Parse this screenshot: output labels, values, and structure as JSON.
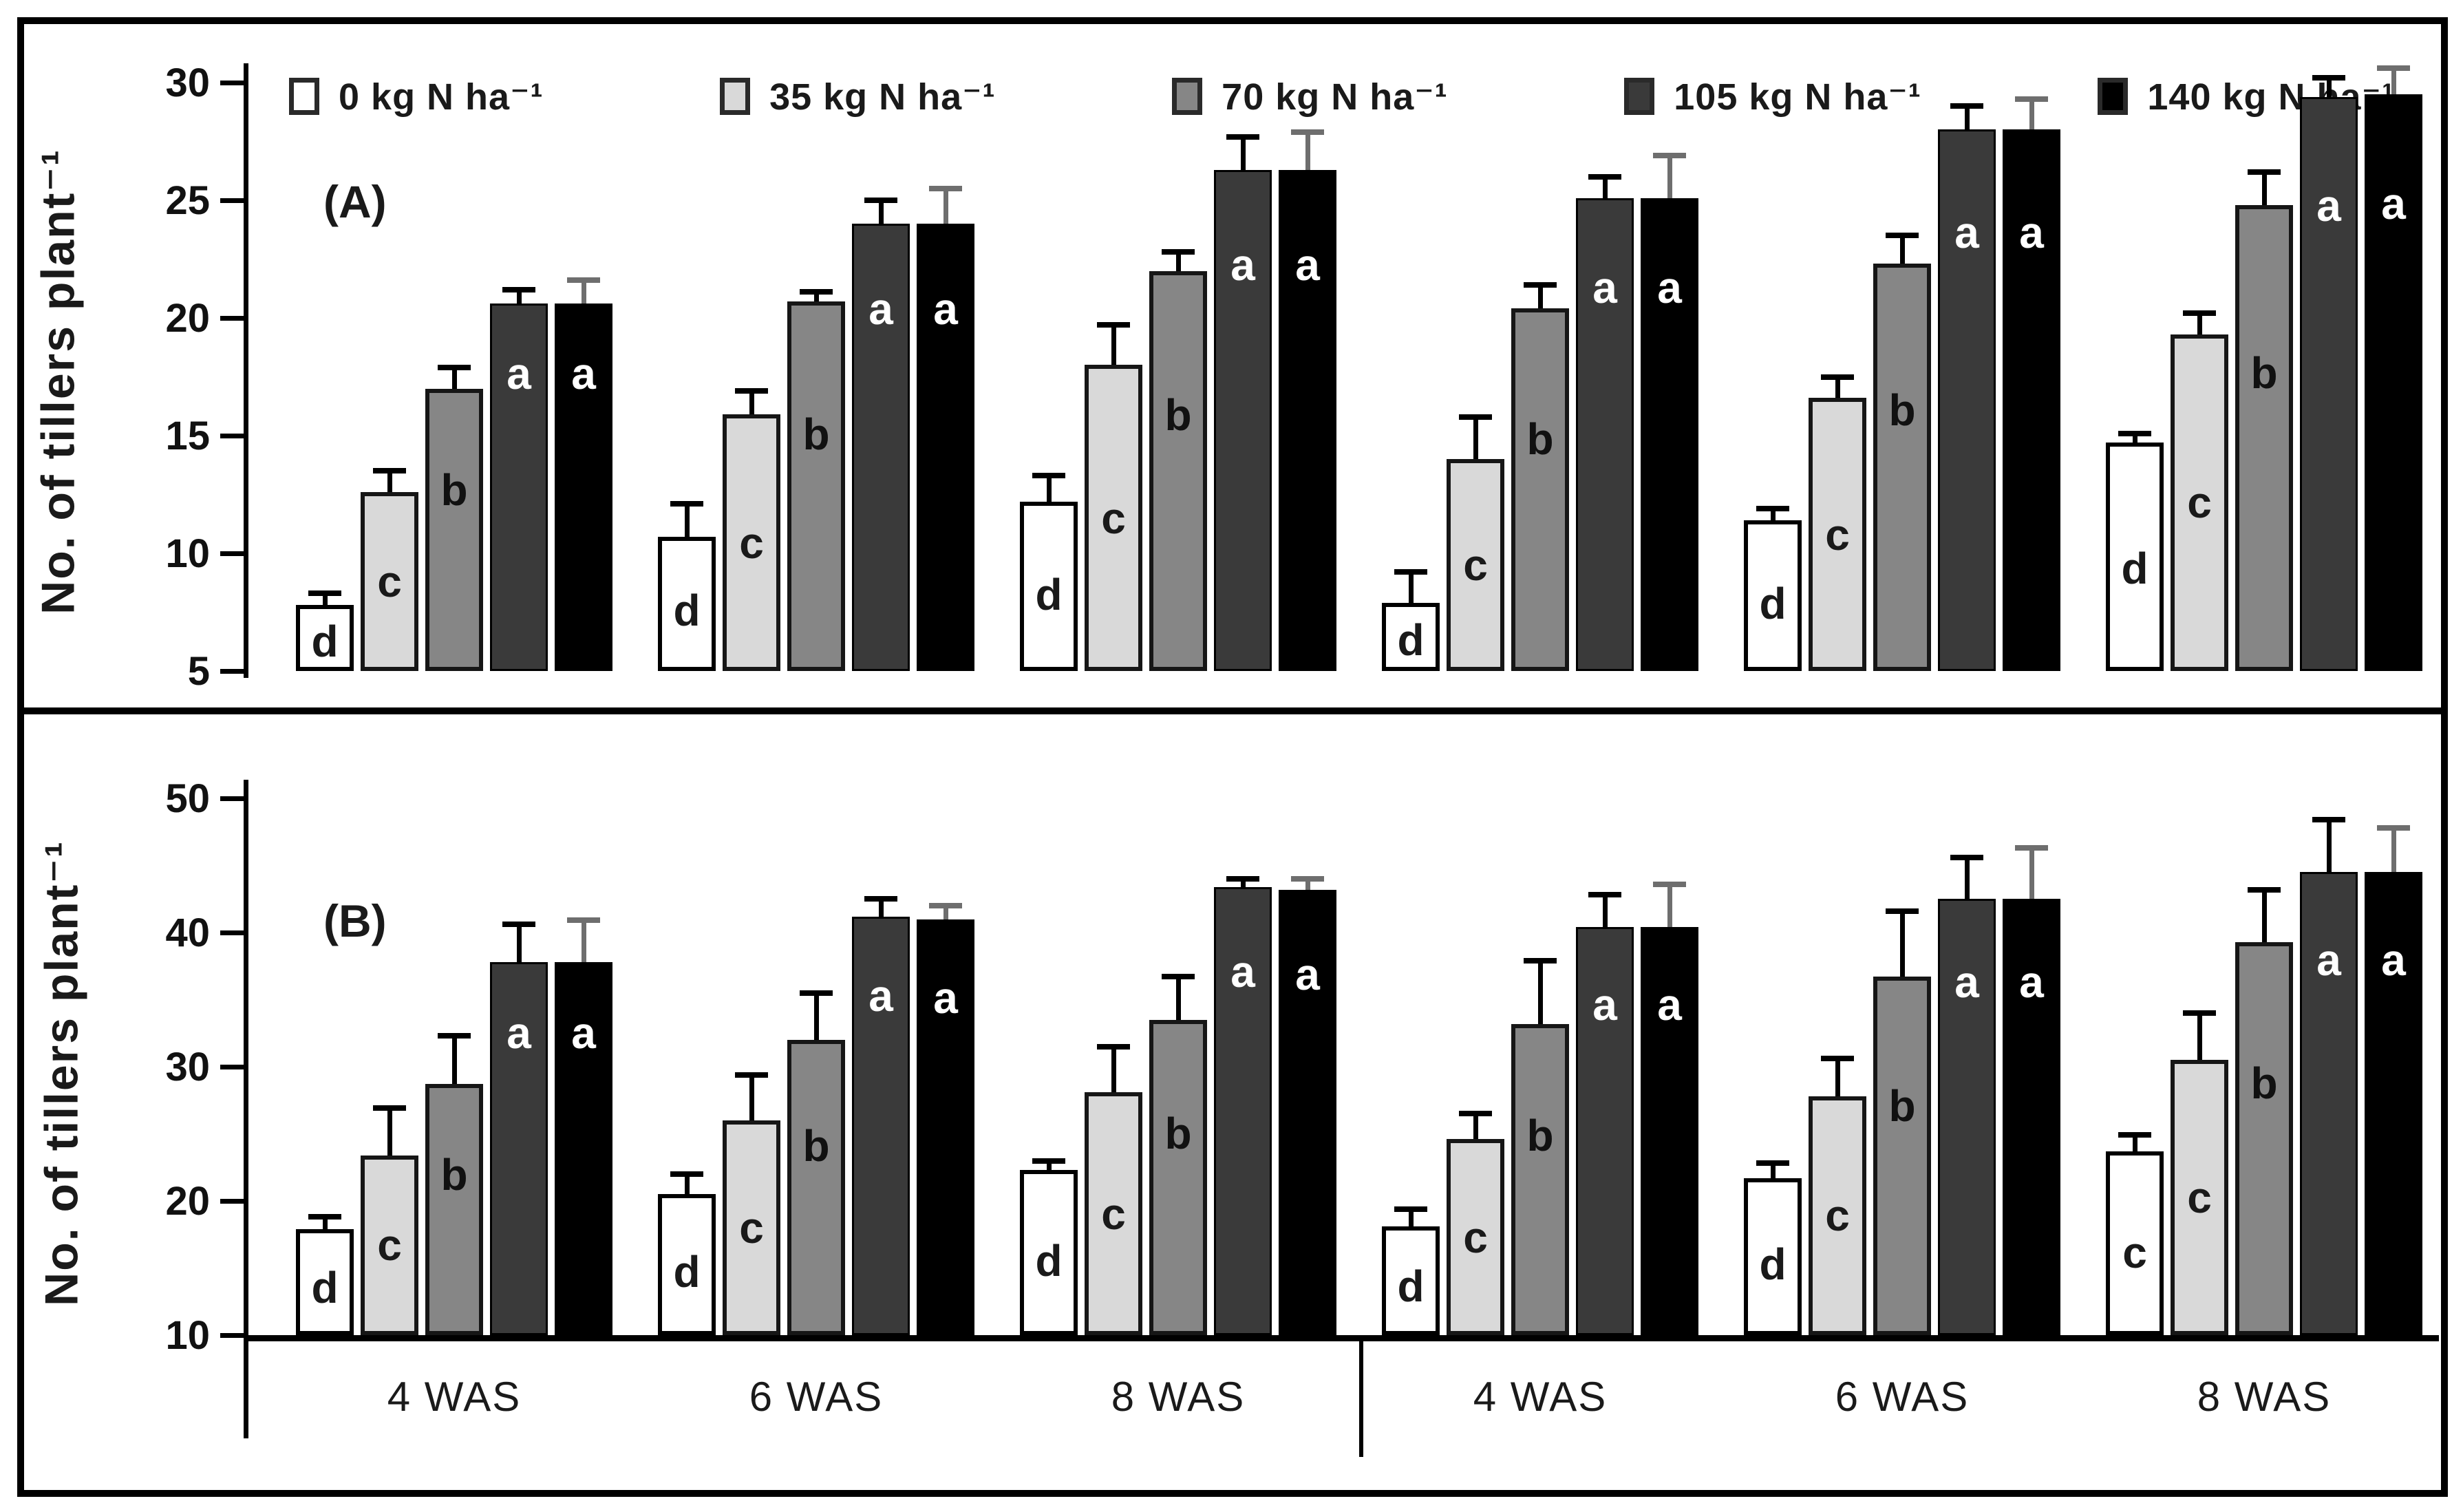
{
  "figure": {
    "border_color": "#000000",
    "background": "#ffffff"
  },
  "legend": {
    "items": [
      {
        "label": "0 kg N ha⁻¹",
        "color": "#ffffff"
      },
      {
        "label": "35 kg N ha⁻¹",
        "color": "#d9d9d9"
      },
      {
        "label": "70 kg N ha⁻¹",
        "color": "#868686"
      },
      {
        "label": "105 kg N ha⁻¹",
        "color": "#3a3a3a"
      },
      {
        "label": "140 kg N ha⁻¹",
        "color": "#000000"
      }
    ]
  },
  "chart_data": [
    {
      "type": "bar",
      "panel": "(A)",
      "ylabel": "No. of tillers plant⁻¹",
      "ylim": [
        5,
        30
      ],
      "yticks": [
        5,
        10,
        15,
        20,
        25,
        30
      ],
      "grid": false,
      "legend_position": "top",
      "categories": [
        "4 WAS",
        "6 WAS",
        "8 WAS",
        "4 WAS",
        "6 WAS",
        "8 WAS"
      ],
      "series": [
        {
          "name": "0 kg N ha⁻¹",
          "color": "#ffffff",
          "values": [
            7.8,
            10.7,
            12.2,
            7.9,
            11.4,
            14.7
          ],
          "errors": [
            0.5,
            1.4,
            1.1,
            1.3,
            0.5,
            0.4
          ],
          "letters": [
            "d",
            "d",
            "d",
            "d",
            "d",
            "d"
          ]
        },
        {
          "name": "35 kg N ha⁻¹",
          "color": "#d9d9d9",
          "values": [
            12.6,
            15.9,
            18.0,
            14.0,
            16.6,
            19.3
          ],
          "errors": [
            0.9,
            1.0,
            1.7,
            1.8,
            0.9,
            0.9
          ],
          "letters": [
            "c",
            "c",
            "c",
            "c",
            "c",
            "c"
          ]
        },
        {
          "name": "70 kg N ha⁻¹",
          "color": "#868686",
          "values": [
            17.0,
            20.7,
            22.0,
            20.4,
            22.3,
            24.8
          ],
          "errors": [
            0.9,
            0.4,
            0.8,
            1.0,
            1.2,
            1.4
          ],
          "letters": [
            "b",
            "b",
            "b",
            "b",
            "b",
            "b"
          ]
        },
        {
          "name": "105 kg N ha⁻¹",
          "color": "#3a3a3a",
          "values": [
            20.6,
            24.0,
            26.3,
            25.1,
            28.0,
            29.4
          ],
          "errors": [
            0.6,
            1.0,
            1.4,
            0.9,
            1.0,
            0.8
          ],
          "letters": [
            "a",
            "a",
            "a",
            "a",
            "a",
            "a"
          ]
        },
        {
          "name": "140 kg N ha⁻¹",
          "color": "#000000",
          "values": [
            20.6,
            24.0,
            26.3,
            25.1,
            28.0,
            29.5
          ],
          "errors": [
            1.0,
            1.5,
            1.6,
            1.8,
            1.3,
            1.1
          ],
          "letters": [
            "a",
            "a",
            "a",
            "a",
            "a",
            "a"
          ]
        }
      ]
    },
    {
      "type": "bar",
      "panel": "(B)",
      "ylabel": "No. of tillers plant⁻¹",
      "ylim": [
        10,
        50
      ],
      "yticks": [
        10,
        20,
        30,
        40,
        50
      ],
      "grid": false,
      "xlabels": [
        "4 WAS",
        "6 WAS",
        "8 WAS",
        "4 WAS",
        "6 WAS",
        "8 WAS"
      ],
      "categories": [
        "4 WAS",
        "6 WAS",
        "8 WAS",
        "4 WAS",
        "6 WAS",
        "8 WAS"
      ],
      "series": [
        {
          "name": "0 kg N ha⁻¹",
          "color": "#ffffff",
          "values": [
            17.9,
            20.5,
            22.3,
            18.1,
            21.7,
            23.7
          ],
          "errors": [
            0.9,
            1.5,
            0.7,
            1.3,
            1.1,
            1.2
          ],
          "letters": [
            "d",
            "d",
            "d",
            "d",
            "d",
            "c"
          ]
        },
        {
          "name": "35 kg N ha⁻¹",
          "color": "#d9d9d9",
          "values": [
            23.4,
            26.0,
            28.1,
            24.6,
            27.8,
            30.5
          ],
          "errors": [
            3.5,
            3.4,
            3.4,
            1.9,
            2.8,
            3.5
          ],
          "letters": [
            "c",
            "c",
            "c",
            "c",
            "c",
            "c"
          ]
        },
        {
          "name": "70 kg N ha⁻¹",
          "color": "#868686",
          "values": [
            28.7,
            32.0,
            33.5,
            33.2,
            36.7,
            39.3
          ],
          "errors": [
            3.6,
            3.5,
            3.2,
            4.7,
            4.9,
            3.9
          ],
          "letters": [
            "b",
            "b",
            "b",
            "b",
            "b",
            "b"
          ]
        },
        {
          "name": "105 kg N ha⁻¹",
          "color": "#3a3a3a",
          "values": [
            37.8,
            41.2,
            43.4,
            40.4,
            42.5,
            44.5
          ],
          "errors": [
            2.8,
            1.3,
            0.6,
            2.4,
            3.1,
            3.9
          ],
          "letters": [
            "a",
            "a",
            "a",
            "a",
            "a",
            "a"
          ]
        },
        {
          "name": "140 kg N ha⁻¹",
          "color": "#000000",
          "values": [
            37.8,
            41.0,
            43.2,
            40.4,
            42.5,
            44.5
          ],
          "errors": [
            3.1,
            1.0,
            0.8,
            3.2,
            3.8,
            3.3
          ],
          "letters": [
            "a",
            "a",
            "a",
            "a",
            "a",
            "a"
          ]
        }
      ]
    }
  ]
}
